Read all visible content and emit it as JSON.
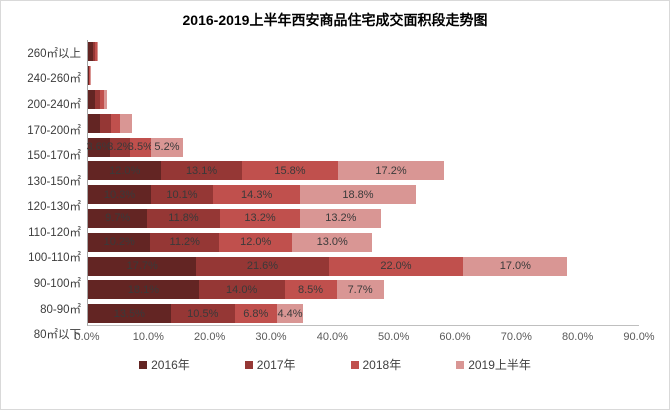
{
  "chart_data": {
    "type": "bar",
    "orientation": "horizontal-stacked",
    "title": "2016-2019上半年西安商品住宅成交面积段走势图",
    "xlabel": "",
    "ylabel": "",
    "xmax": 90,
    "grid": false,
    "legend_position": "bottom-center",
    "x_ticks": [
      "0.0%",
      "10.0%",
      "20.0%",
      "30.0%",
      "40.0%",
      "50.0%",
      "60.0%",
      "70.0%",
      "80.0%",
      "90.0%"
    ],
    "series": [
      {
        "key": "y2016",
        "name": "2016年",
        "color": "#632523"
      },
      {
        "key": "y2017",
        "name": "2017年",
        "color": "#953735"
      },
      {
        "key": "y2018",
        "name": "2018年",
        "color": "#C0504D"
      },
      {
        "key": "y2019h1",
        "name": "2019上半年",
        "color": "#D99694"
      }
    ],
    "rows_order": "top-to-bottom",
    "rows": [
      {
        "category": "260㎡以上",
        "values": [
          0.8,
          0.4,
          0.3,
          0.2
        ],
        "labels": [
          "",
          "",
          "",
          ""
        ]
      },
      {
        "category": "240-260㎡",
        "values": [
          0.1,
          0.1,
          0.1,
          0.1
        ],
        "labels": [
          "",
          "",
          "",
          ""
        ]
      },
      {
        "category": "200-240㎡",
        "values": [
          1.1,
          0.8,
          0.7,
          0.5
        ],
        "labels": [
          "",
          "",
          "",
          ""
        ]
      },
      {
        "category": "170-200㎡",
        "values": [
          2.0,
          1.7,
          1.6,
          1.9
        ],
        "labels": [
          "",
          "",
          "",
          ""
        ]
      },
      {
        "category": "150-170㎡",
        "values": [
          3.6,
          3.2,
          3.5,
          5.2
        ],
        "labels": [
          "3.6%",
          "3.2%",
          "3.5%",
          "5.2%"
        ]
      },
      {
        "category": "130-150㎡",
        "values": [
          12.0,
          13.1,
          15.8,
          17.2
        ],
        "labels": [
          "12.0%",
          "13.1%",
          "15.8%",
          "17.2%"
        ]
      },
      {
        "category": "120-130㎡",
        "values": [
          10.3,
          10.1,
          14.3,
          18.8
        ],
        "labels": [
          "10.3%",
          "10.1%",
          "14.3%",
          "18.8%"
        ]
      },
      {
        "category": "110-120㎡",
        "values": [
          9.7,
          11.8,
          13.2,
          13.2
        ],
        "labels": [
          "9.7%",
          "11.8%",
          "13.2%",
          "13.2%"
        ]
      },
      {
        "category": "100-110㎡",
        "values": [
          10.2,
          11.2,
          12.0,
          13.0
        ],
        "labels": [
          "10.2%",
          "11.2%",
          "12.0%",
          "13.0%"
        ]
      },
      {
        "category": "90-100㎡",
        "values": [
          17.7,
          21.6,
          22.0,
          17.0
        ],
        "labels": [
          "17.7%",
          "21.6%",
          "22.0%",
          "17.0%"
        ]
      },
      {
        "category": "80-90㎡",
        "values": [
          18.1,
          14.0,
          8.5,
          7.7
        ],
        "labels": [
          "18.1%",
          "14.0%",
          "8.5%",
          "7.7%"
        ]
      },
      {
        "category": "80㎡以下",
        "values": [
          13.5,
          10.5,
          6.8,
          4.4
        ],
        "labels": [
          "13.5%",
          "10.5%",
          "6.8%",
          "4.4%"
        ]
      }
    ]
  }
}
